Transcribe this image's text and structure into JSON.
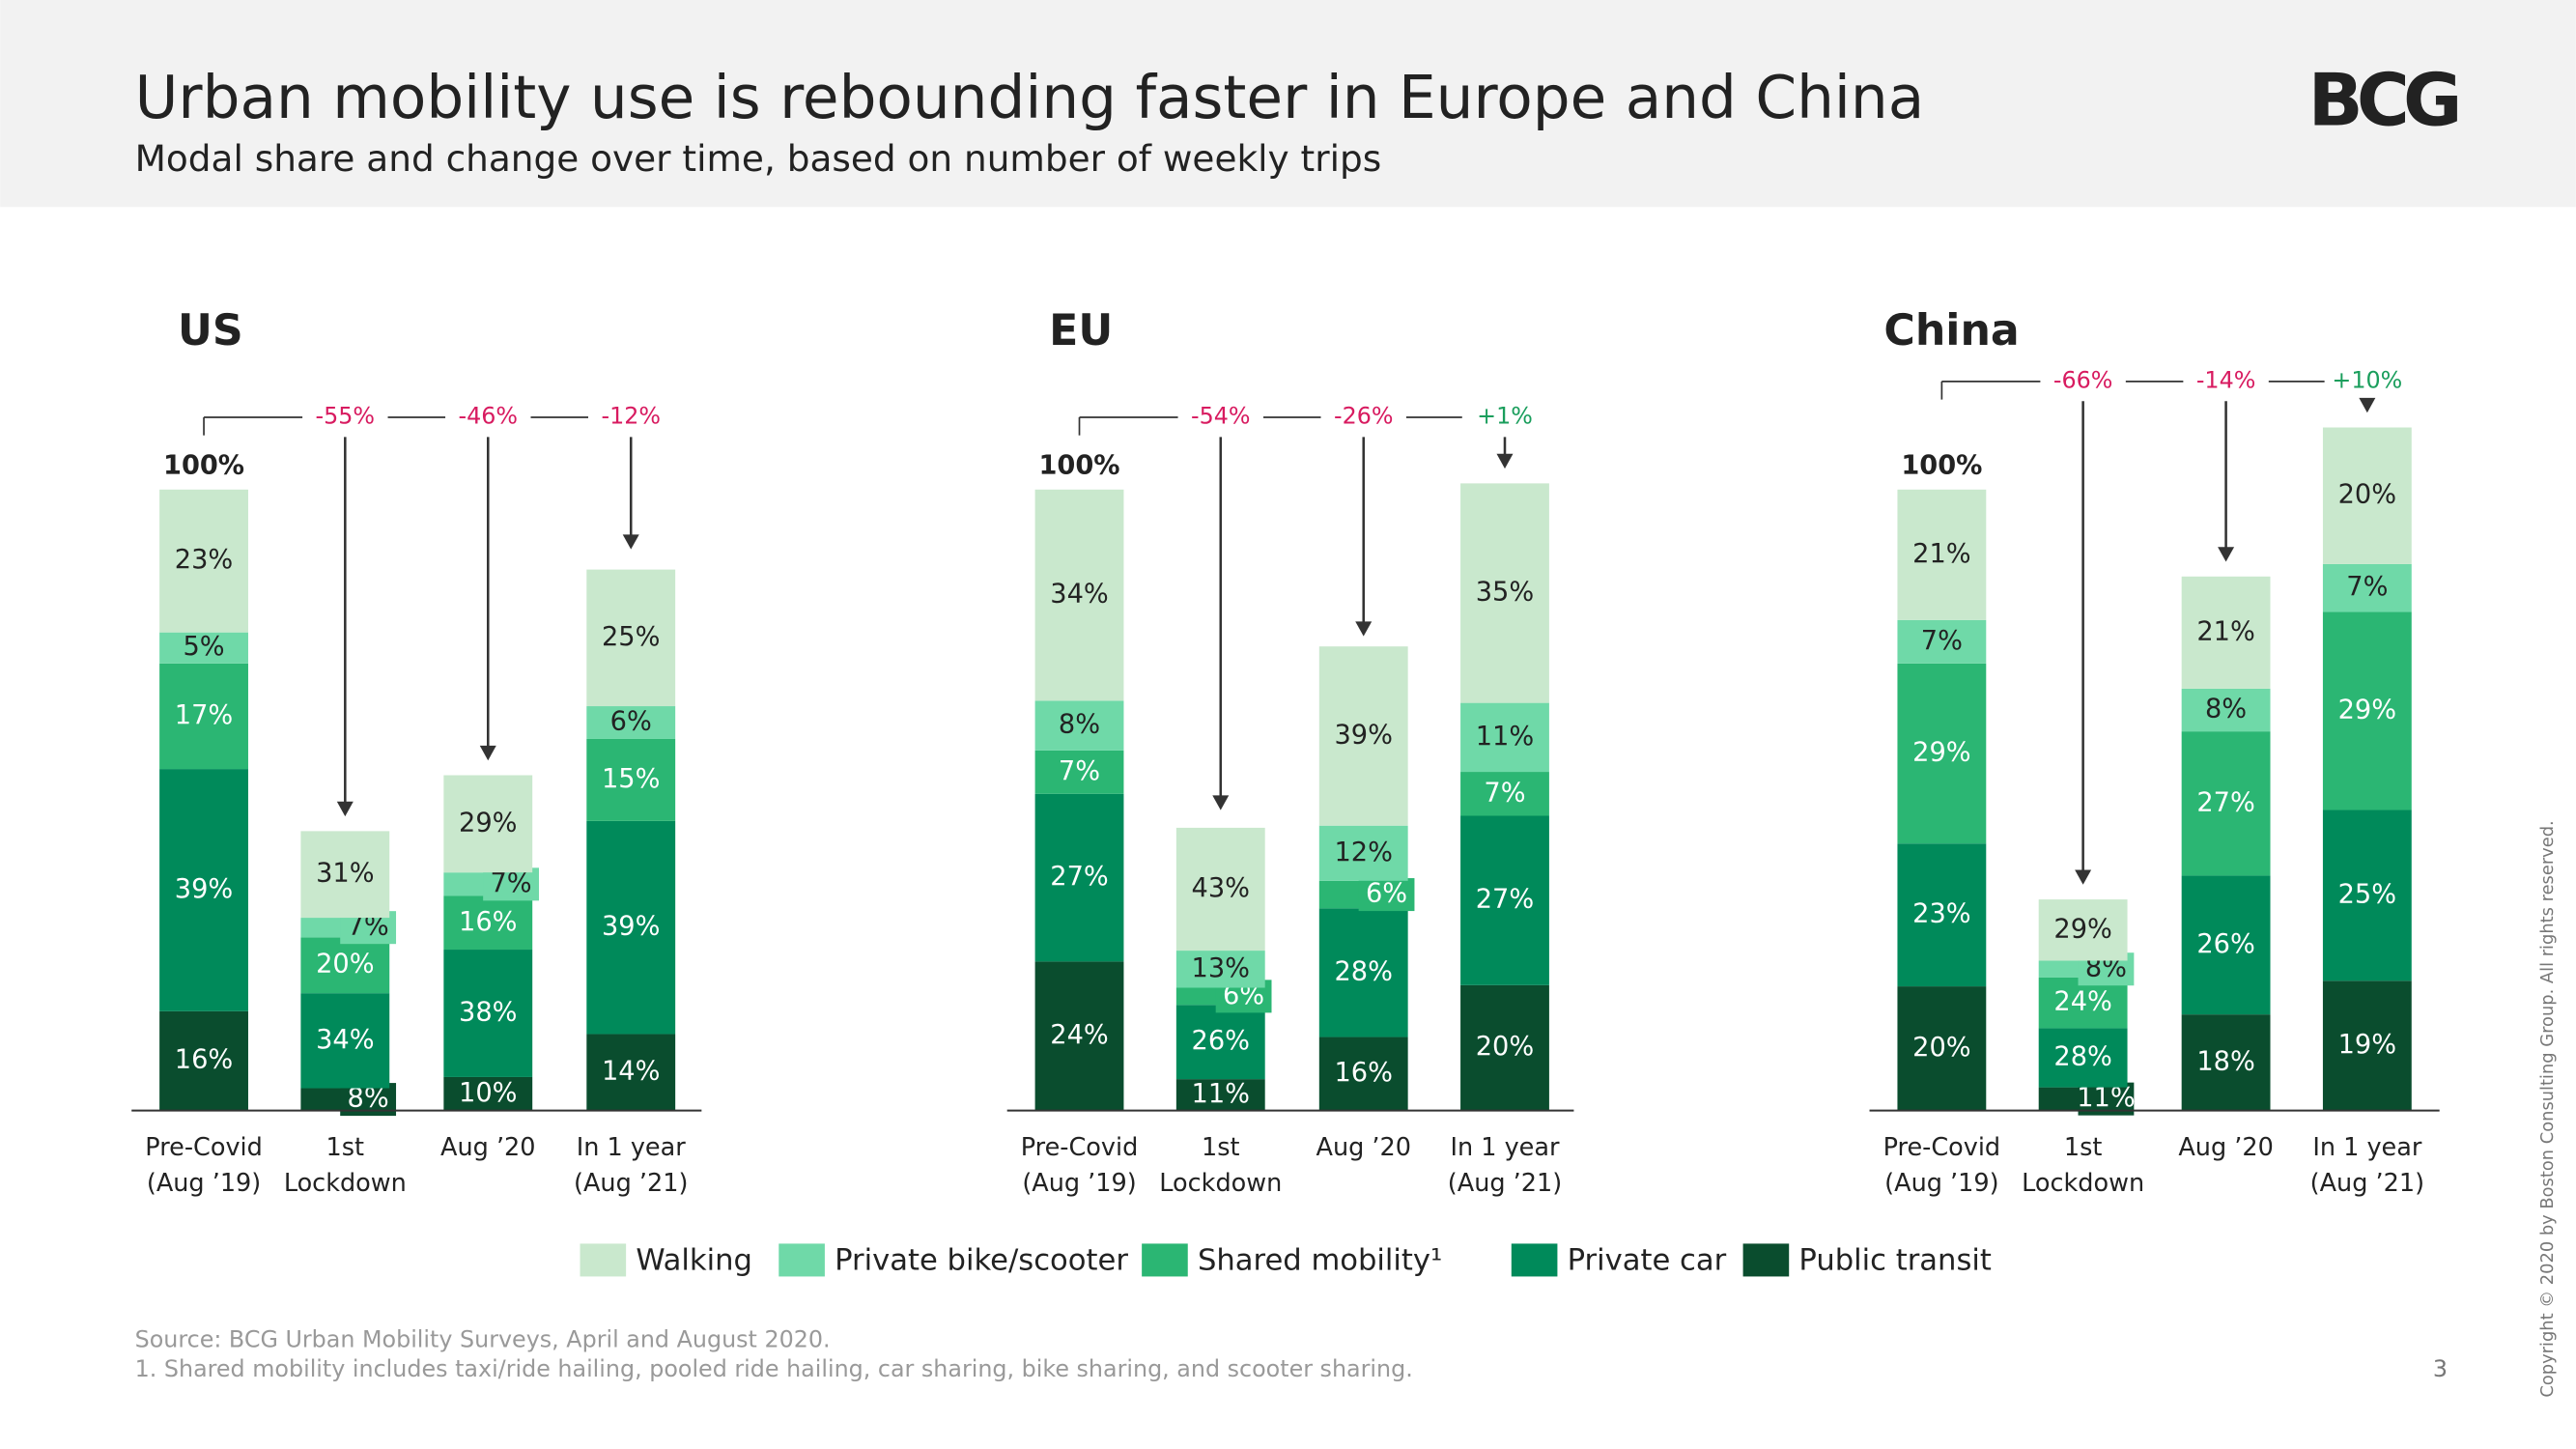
{
  "header": {
    "title": "Urban mobility use is rebounding faster in Europe and China",
    "subtitle": "Modal share and change over time, based on number of weekly trips",
    "logo": "BCG"
  },
  "legend": [
    {
      "name": "Walking",
      "color": "#c9e8cd"
    },
    {
      "name": "Private bike/scooter",
      "color": "#6fd9a8"
    },
    {
      "name": "Shared mobility¹",
      "color": "#2bb673"
    },
    {
      "name": "Private car",
      "color": "#008a5a"
    },
    {
      "name": "Public transit",
      "color": "#0a4d2e"
    }
  ],
  "chart_data": [
    {
      "type": "bar",
      "stacked": true,
      "title": "US",
      "categories": [
        [
          "Pre-Covid",
          "(Aug ’19)"
        ],
        [
          "1st",
          "Lockdown"
        ],
        [
          "Aug ’20"
        ],
        [
          "In 1 year",
          "(Aug ’21)"
        ]
      ],
      "change": {
        "values": [
          100,
          -55,
          -46,
          -12
        ],
        "value_labels": [
          "100%",
          "-55%",
          "-46%",
          "-12%"
        ]
      },
      "series": [
        {
          "values": [
            23,
            31,
            29,
            25
          ],
          "value_labels": [
            "23%",
            "31%",
            "29%",
            "25%"
          ]
        },
        {
          "values": [
            5,
            7,
            7,
            6
          ],
          "value_labels": [
            "5%",
            "7%",
            "7%",
            "6%"
          ]
        },
        {
          "values": [
            17,
            20,
            16,
            15
          ],
          "value_labels": [
            "17%",
            "20%",
            "16%",
            "15%"
          ]
        },
        {
          "values": [
            39,
            34,
            38,
            39
          ],
          "value_labels": [
            "39%",
            "34%",
            "38%",
            "39%"
          ]
        },
        {
          "values": [
            16,
            8,
            10,
            14
          ],
          "value_labels": [
            "16%",
            "8%",
            "10%",
            "14%"
          ]
        }
      ]
    },
    {
      "type": "bar",
      "stacked": true,
      "title": "EU",
      "categories": [
        [
          "Pre-Covid",
          "(Aug ’19)"
        ],
        [
          "1st",
          "Lockdown"
        ],
        [
          "Aug ’20"
        ],
        [
          "In 1 year",
          "(Aug ’21)"
        ]
      ],
      "change": {
        "values": [
          100,
          -54,
          -26,
          1
        ],
        "value_labels": [
          "100%",
          "-54%",
          "-26%",
          "+1%"
        ]
      },
      "series": [
        {
          "values": [
            34,
            43,
            39,
            35
          ],
          "value_labels": [
            "34%",
            "43%",
            "39%",
            "35%"
          ]
        },
        {
          "values": [
            8,
            13,
            12,
            11
          ],
          "value_labels": [
            "8%",
            "13%",
            "12%",
            "11%"
          ]
        },
        {
          "values": [
            7,
            6,
            6,
            7
          ],
          "value_labels": [
            "7%",
            "6%",
            "6%",
            "7%"
          ]
        },
        {
          "values": [
            27,
            26,
            28,
            27
          ],
          "value_labels": [
            "27%",
            "26%",
            "28%",
            "27%"
          ]
        },
        {
          "values": [
            24,
            11,
            16,
            20
          ],
          "value_labels": [
            "24%",
            "11%",
            "16%",
            "20%"
          ]
        }
      ]
    },
    {
      "type": "bar",
      "stacked": true,
      "title": "China",
      "categories": [
        [
          "Pre-Covid",
          "(Aug ’19)"
        ],
        [
          "1st",
          "Lockdown"
        ],
        [
          "Aug ’20"
        ],
        [
          "In 1 year",
          "(Aug ’21)"
        ]
      ],
      "change": {
        "values": [
          100,
          -66,
          -14,
          10
        ],
        "value_labels": [
          "100%",
          "-66%",
          "-14%",
          "+10%"
        ]
      },
      "series": [
        {
          "values": [
            21,
            29,
            21,
            20
          ],
          "value_labels": [
            "21%",
            "29%",
            "21%",
            "20%"
          ]
        },
        {
          "values": [
            7,
            8,
            8,
            7
          ],
          "value_labels": [
            "7%",
            "8%",
            "8%",
            "7%"
          ]
        },
        {
          "values": [
            29,
            24,
            27,
            29
          ],
          "value_labels": [
            "29%",
            "24%",
            "27%",
            "29%"
          ]
        },
        {
          "values": [
            23,
            28,
            26,
            25
          ],
          "value_labels": [
            "23%",
            "28%",
            "26%",
            "25%"
          ]
        },
        {
          "values": [
            20,
            11,
            18,
            19
          ],
          "value_labels": [
            "20%",
            "11%",
            "18%",
            "19%"
          ]
        }
      ]
    }
  ],
  "footer": {
    "source": "Source: BCG Urban Mobility Surveys, April and August 2020.",
    "footnote": "1. Shared mobility includes taxi/ride hailing, pooled ride hailing, car sharing, bike sharing, and scooter sharing.",
    "page": "3",
    "copyright": "Copyright © 2020 by Boston Consulting Group. All rights reserved."
  }
}
